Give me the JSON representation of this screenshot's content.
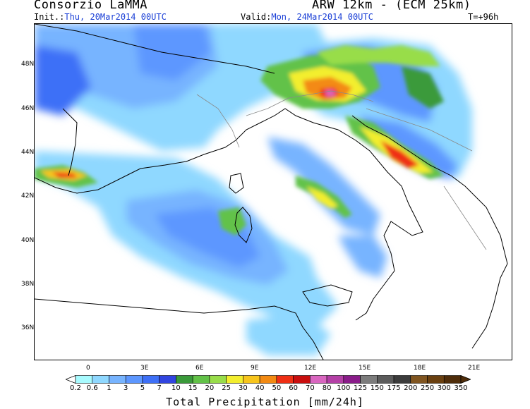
{
  "header": {
    "org": "Consorzio LaMMA",
    "model": "ARW 12km - (ECM 25km)",
    "init_label": "Init.:",
    "init_value": "Thu, 20Mar2014 00UTC",
    "valid_label": "Valid:",
    "valid_value": "Mon, 24Mar2014 00UTC",
    "lead": "T=+96h"
  },
  "map": {
    "lat_labels": [
      "48N",
      "46N",
      "44N",
      "42N",
      "40N",
      "38N",
      "36N"
    ],
    "lon_labels": [
      "0",
      "3E",
      "6E",
      "9E",
      "12E",
      "15E",
      "18E",
      "21E"
    ]
  },
  "colorbar": {
    "labels": [
      "0.2",
      "0.6",
      "1",
      "3",
      "5",
      "7",
      "10",
      "15",
      "20",
      "25",
      "30",
      "40",
      "50",
      "60",
      "70",
      "80",
      "100",
      "125",
      "150",
      "175",
      "200",
      "250",
      "300",
      "350"
    ],
    "colors": [
      "#a8fbff",
      "#8fd8ff",
      "#77b4ff",
      "#5d97ff",
      "#3e70f7",
      "#3145e0",
      "#3a9a3a",
      "#62c248",
      "#98dd4a",
      "#f3ee2e",
      "#f7c51c",
      "#f38a12",
      "#ef2f14",
      "#c90e0e",
      "#d966c0",
      "#b43fa6",
      "#8a1c8a",
      "#7c7c7c",
      "#5b5b5b",
      "#3c3c3c",
      "#805520",
      "#6a4010",
      "#4f2d0a"
    ],
    "title": "Total Precipitation [mm/24h]"
  }
}
